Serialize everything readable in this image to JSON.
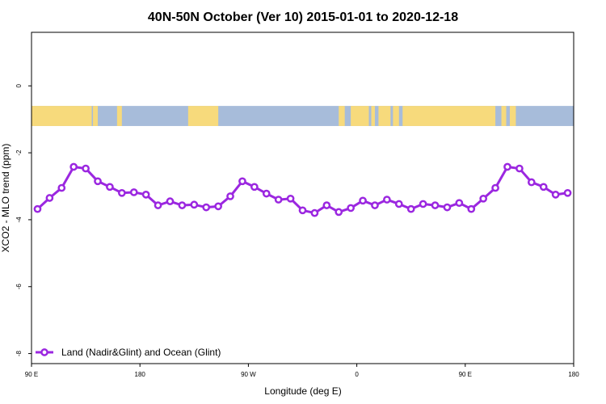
{
  "chart_data": {
    "type": "line",
    "title": "40N-50N October (Ver 10)   2015-01-01 to 2020-12-18",
    "xlabel": "Longitude (deg E)",
    "ylabel": "XCO2 - MLO trend (ppm)",
    "xlim": [
      90,
      540
    ],
    "ylim": [
      -8.3,
      1.6
    ],
    "x_ticks": [
      {
        "value": 90,
        "label": "90 E"
      },
      {
        "value": 180,
        "label": "180"
      },
      {
        "value": 270,
        "label": "90 W"
      },
      {
        "value": 360,
        "label": "0"
      },
      {
        "value": 450,
        "label": "90 E"
      },
      {
        "value": 540,
        "label": "180"
      }
    ],
    "y_ticks": [
      {
        "value": 0,
        "label": "0"
      },
      {
        "value": -2,
        "label": "-2"
      },
      {
        "value": -4,
        "label": "-4"
      },
      {
        "value": -6,
        "label": "-6"
      },
      {
        "value": -8,
        "label": "-8"
      }
    ],
    "grid": false,
    "legend_position": "bottom-left",
    "series": [
      {
        "name": "Land (Nadir&Glint) and Ocean (Glint)",
        "color": "#9b27e0",
        "x": [
          95,
          105,
          115,
          125,
          135,
          145,
          155,
          165,
          175,
          185,
          195,
          205,
          215,
          225,
          235,
          245,
          255,
          265,
          275,
          285,
          295,
          305,
          315,
          325,
          335,
          345,
          355,
          365,
          375,
          385,
          395,
          405,
          415,
          425,
          435,
          445,
          455,
          465,
          475,
          485,
          495,
          505,
          515,
          525,
          535
        ],
        "values": [
          -3.68,
          -3.35,
          -3.05,
          -2.42,
          -2.47,
          -2.85,
          -3.02,
          -3.2,
          -3.18,
          -3.25,
          -3.57,
          -3.45,
          -3.57,
          -3.55,
          -3.63,
          -3.6,
          -3.3,
          -2.85,
          -3.02,
          -3.22,
          -3.4,
          -3.37,
          -3.72,
          -3.8,
          -3.57,
          -3.77,
          -3.65,
          -3.43,
          -3.57,
          -3.4,
          -3.53,
          -3.68,
          -3.53,
          -3.57,
          -3.63,
          -3.5,
          -3.68,
          -3.37,
          -3.05,
          -2.42,
          -2.47,
          -2.88,
          -3.02,
          -3.25,
          -3.2
        ]
      }
    ],
    "background_band": {
      "y_range": [
        -1.2,
        -0.6
      ],
      "land_color": "#f7da7c",
      "ocean_color": "#a7bcda",
      "land_segments": [
        [
          90,
          140
        ],
        [
          141,
          145
        ],
        [
          161,
          165
        ],
        [
          220,
          245
        ],
        [
          345,
          350
        ],
        [
          355,
          370
        ],
        [
          372,
          375
        ],
        [
          378,
          388
        ],
        [
          390,
          395
        ],
        [
          398,
          475
        ],
        [
          480,
          484
        ],
        [
          487,
          492
        ]
      ]
    }
  }
}
